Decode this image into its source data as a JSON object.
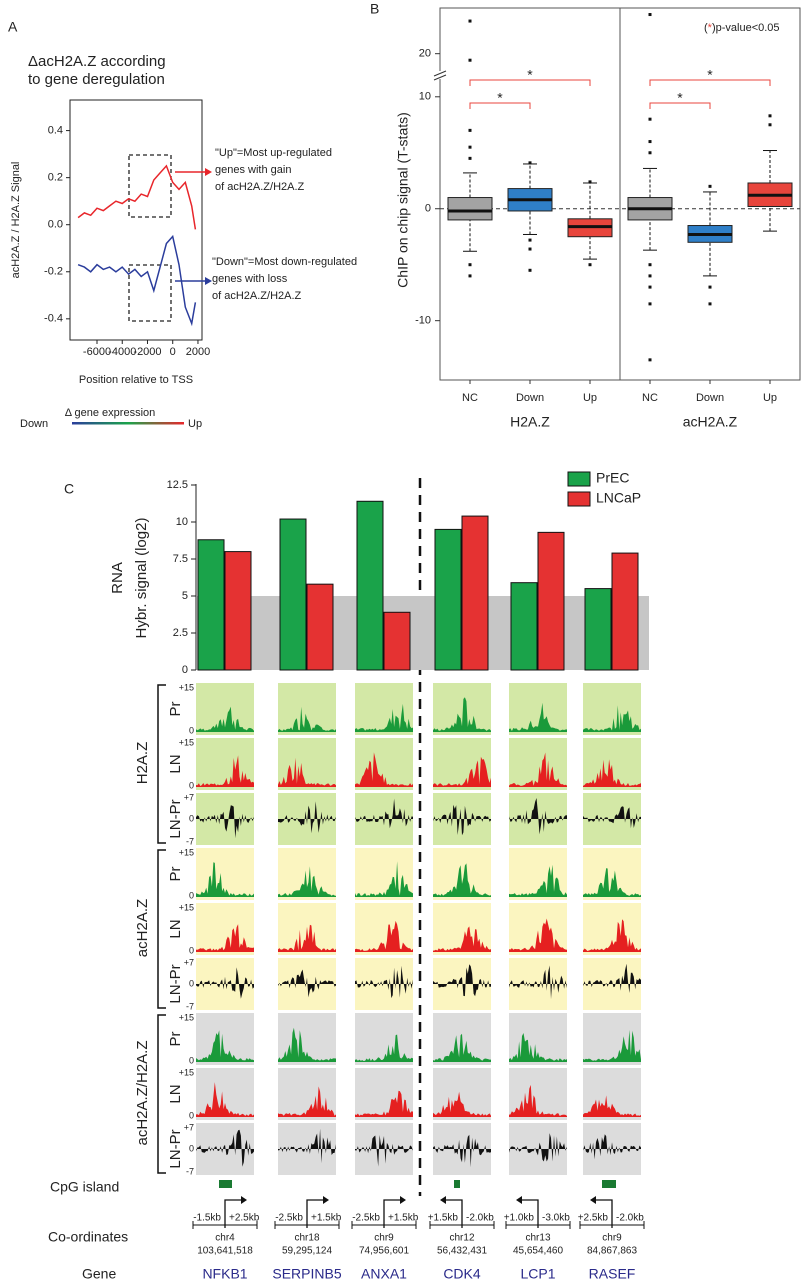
{
  "panel_labels": [
    "A",
    "B",
    "C"
  ],
  "chart_data": [
    {
      "type": "line",
      "title": [
        "ΔacH2A.Z according",
        "to gene deregulation"
      ],
      "ylabel": "acH2A.Z / H2A.Z Signal",
      "xlabel": "Position relative to TSS",
      "x": [
        -7500,
        -7000,
        -6500,
        -6000,
        -5500,
        -5000,
        -4500,
        -4000,
        -3500,
        -3000,
        -2500,
        -2000,
        -1500,
        -1000,
        -500,
        0,
        500,
        1000,
        1500,
        1800
      ],
      "series": [
        {
          "name": "Up",
          "color": "#e8262b",
          "values": [
            0.03,
            0.05,
            0.04,
            0.07,
            0.06,
            0.08,
            0.1,
            0.09,
            0.11,
            0.1,
            0.13,
            0.12,
            0.19,
            0.22,
            0.25,
            0.18,
            0.15,
            0.18,
            0.08,
            -0.02
          ]
        },
        {
          "name": "Down",
          "color": "#2b3d9c",
          "values": [
            -0.17,
            -0.18,
            -0.2,
            -0.17,
            -0.19,
            -0.18,
            -0.2,
            -0.18,
            -0.21,
            -0.19,
            -0.22,
            -0.2,
            -0.28,
            -0.18,
            -0.08,
            -0.05,
            -0.17,
            -0.35,
            -0.42,
            -0.33
          ]
        }
      ],
      "xlim": [
        -8140,
        2320
      ],
      "xticks": [
        -6000,
        -4000,
        -2000,
        0,
        2000
      ],
      "ylim": [
        -0.49,
        0.53
      ],
      "yticks": [
        -0.4,
        -0.2,
        {
          "value": 0,
          "label": "0.0"
        },
        0.2,
        0.4
      ],
      "annotations": [
        [
          "\"Up\"=Most up-regulated",
          "genes with gain",
          "of acH2A.Z/H2A.Z"
        ],
        [
          "\"Down\"=Most down-regulated",
          "genes with loss",
          "of acH2A.Z/H2A.Z"
        ]
      ],
      "legend": {
        "title": "Δ gene expression",
        "low": "Down",
        "high": "Up"
      }
    },
    {
      "type": "box",
      "ylabel": "ChIP on chip signal (T-stats)",
      "categories": [
        "NC",
        "Down",
        "Up",
        "NC",
        "Down",
        "Up"
      ],
      "groups": [
        "H2A.Z",
        "acH2A.Z"
      ],
      "colors": [
        "#a3a3a3",
        "#2f7fc8",
        "#e8453c",
        "#a3a3a3",
        "#2f7fc8",
        "#e8453c"
      ],
      "boxes": [
        {
          "min": -3.8,
          "q1": -1,
          "median": -0.2,
          "q3": 1,
          "max": 3.2,
          "outliers": [
            25,
            19,
            7,
            5.5,
            4.5,
            -5,
            -6
          ]
        },
        {
          "min": -2.3,
          "q1": -0.2,
          "median": 0.8,
          "q3": 1.8,
          "max": 4,
          "outliers": [
            4.1,
            -2.8,
            -3.6,
            -5.5
          ]
        },
        {
          "min": -4.5,
          "q1": -2.5,
          "median": -1.6,
          "q3": -0.9,
          "max": 2.3,
          "outliers": [
            -5,
            2.4
          ]
        },
        {
          "min": -3.7,
          "q1": -1,
          "median": 0,
          "q3": 1,
          "max": 3.6,
          "outliers": [
            26,
            8,
            6,
            5,
            -5,
            -6,
            -7,
            -8.5,
            -13.5
          ]
        },
        {
          "min": -6,
          "q1": -3,
          "median": -2.3,
          "q3": -1.5,
          "max": 1.5,
          "outliers": [
            2,
            -7,
            -8.5
          ]
        },
        {
          "min": -2,
          "q1": 0.2,
          "median": 1.2,
          "q3": 2.3,
          "max": 5.2,
          "outliers": [
            7.5,
            8.3
          ]
        }
      ],
      "ylim": [
        -15.3,
        27
      ],
      "ybreak": [
        11.5,
        17.5
      ],
      "yticks": [
        -10,
        0,
        10,
        20
      ],
      "significance": [
        "*",
        "*",
        "*",
        "*"
      ],
      "significance_note": [
        "(",
        "*",
        ")p-value<0.05"
      ]
    },
    {
      "type": "bar",
      "ylabel": [
        "RNA",
        "Hybr. signal (log2)"
      ],
      "categories": [
        "NFKB1",
        "SERPINB5",
        "ANXA1",
        "CDK4",
        "LCP1",
        "RASEF"
      ],
      "series": [
        {
          "name": "PrEC",
          "color": "#1aa34a",
          "values": [
            8.8,
            10.2,
            11.4,
            9.5,
            5.9,
            5.5
          ]
        },
        {
          "name": "LNCaP",
          "color": "#e53232",
          "values": [
            8.0,
            5.8,
            3.9,
            10.4,
            9.3,
            7.9
          ]
        }
      ],
      "shaded_below": 5,
      "ylim": [
        0,
        12.5
      ],
      "yticks": [
        0,
        2.5,
        5,
        7.5,
        10,
        12.5
      ]
    }
  ],
  "tracks": {
    "groups": [
      {
        "name": "H2A.Z",
        "background": "#d3e8a6"
      },
      {
        "name": "acH2A.Z",
        "background": "#fbf5c0"
      },
      {
        "name": "acH2A.Z/H2A.Z",
        "background": "#dcdcdc"
      }
    ],
    "rows": [
      "Pr",
      "LN",
      "LN-Pr"
    ],
    "scale_signal": [
      "+15",
      "0"
    ],
    "scale_diff": [
      "+7",
      "0",
      "-7"
    ]
  },
  "genes": {
    "cpg_label": "CpG island",
    "coord_label": "Co-ordinates",
    "gene_label": "Gene",
    "items": [
      {
        "name": "NFKB1",
        "left": "-1.5kb",
        "right": "+2.5kb",
        "chr": "chr4",
        "pos": "103,641,518"
      },
      {
        "name": "SERPINB5",
        "left": "-2.5kb",
        "right": "+1.5kb",
        "chr": "chr18",
        "pos": "59,295,124"
      },
      {
        "name": "ANXA1",
        "left": "-2.5kb",
        "right": "+1.5kb",
        "chr": "chr9",
        "pos": "74,956,601"
      },
      {
        "name": "CDK4",
        "left": "+1.5kb",
        "right": "-2.0kb",
        "chr": "chr12",
        "pos": "56,432,431"
      },
      {
        "name": "LCP1",
        "left": "+1.0kb",
        "right": "-3.0kb",
        "chr": "chr13",
        "pos": "45,654,460"
      },
      {
        "name": "RASEF",
        "left": "+2.5kb",
        "right": "-2.0kb",
        "chr": "chr9",
        "pos": "84,867,863"
      }
    ]
  }
}
